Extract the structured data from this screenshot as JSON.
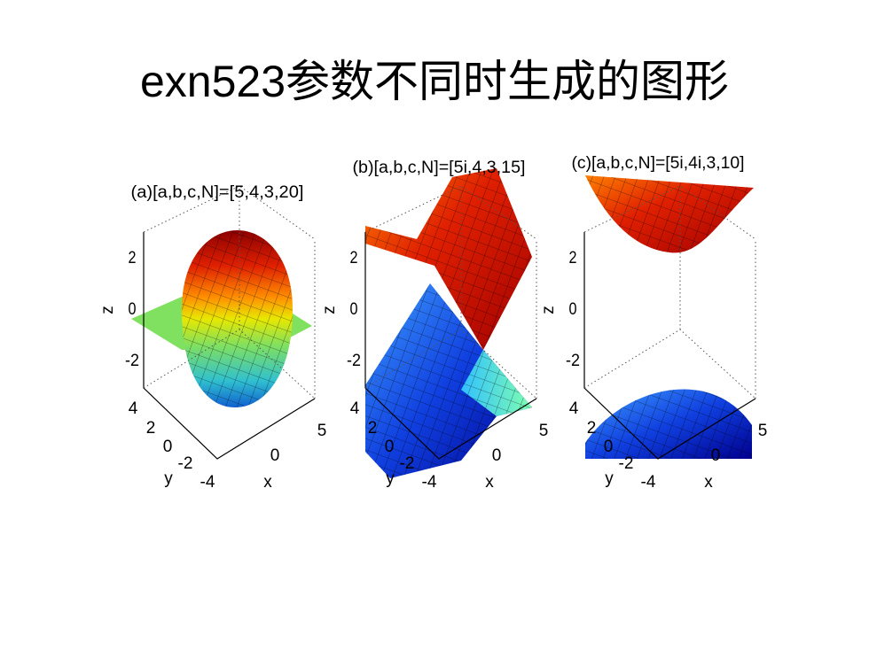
{
  "title": "exn523参数不同时生成的图形",
  "panels": [
    {
      "title": "(a)[a,b,c,N]=[5,4,3,20]",
      "z_label": "z",
      "y_label": "y",
      "x_label": "x",
      "z_ticks": [
        "2",
        "0",
        "-2"
      ],
      "y_ticks": [
        "4",
        "2",
        "0",
        "-2",
        "-4"
      ],
      "x_ticks": [
        "0",
        "5"
      ]
    },
    {
      "title": "(b)[a,b,c,N]=[5i,4,3,15]",
      "z_label": "z",
      "y_label": "y",
      "x_label": "x",
      "z_ticks": [
        "2",
        "0",
        "-2"
      ],
      "y_ticks": [
        "4",
        "2",
        "0",
        "-2",
        "-4"
      ],
      "x_ticks": [
        "0",
        "5"
      ]
    },
    {
      "title": "(c)[a,b,c,N]=[5i,4i,3,10]",
      "z_label": "z",
      "y_label": "y",
      "x_label": "x",
      "z_ticks": [
        "2",
        "0",
        "-2"
      ],
      "y_ticks": [
        "4",
        "2",
        "0",
        "-2",
        "-4"
      ],
      "x_ticks": [
        "0",
        "5"
      ]
    }
  ]
}
